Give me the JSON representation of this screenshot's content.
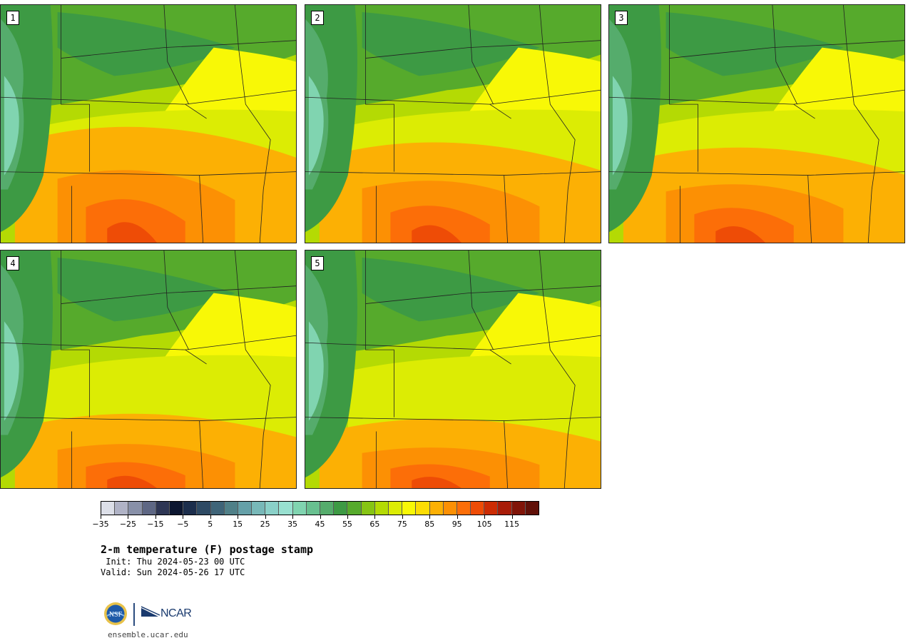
{
  "panels": [
    {
      "label": "1",
      "hot": 1.0
    },
    {
      "label": "2",
      "hot": 0.85
    },
    {
      "label": "3",
      "hot": 0.8
    },
    {
      "label": "4",
      "hot": 0.6
    },
    {
      "label": "5",
      "hot": 0.55
    }
  ],
  "colorbar": {
    "colors": [
      "#dcdfe8",
      "#b0b3c6",
      "#8890a8",
      "#5e6784",
      "#2e3654",
      "#0c1630",
      "#1c2e4c",
      "#2e4a64",
      "#3f6478",
      "#508088",
      "#65a0a8",
      "#78b8b8",
      "#8ad0c8",
      "#98e0d0",
      "#80d4b0",
      "#68c090",
      "#55ac6c",
      "#3d9a44",
      "#56aa2c",
      "#86c414",
      "#b4da04",
      "#dcec04",
      "#f8f806",
      "#fcdc04",
      "#fcb004",
      "#fc9004",
      "#fc6e08",
      "#ee4c06",
      "#cc2c04",
      "#a81c08",
      "#801408",
      "#601008"
    ],
    "tick_labels": [
      "−35",
      "−25",
      "−15",
      "−5",
      "5",
      "15",
      "25",
      "35",
      "45",
      "55",
      "65",
      "75",
      "85",
      "95",
      "105",
      "115"
    ]
  },
  "title": "2-m temperature (F) postage stamp",
  "init": " Init: Thu 2024-05-23 00 UTC",
  "valid": "Valid: Sun 2024-05-26 17 UTC",
  "logos": {
    "nsf": "NSF",
    "ncar": "NCAR"
  },
  "site": "ensemble.ucar.edu"
}
